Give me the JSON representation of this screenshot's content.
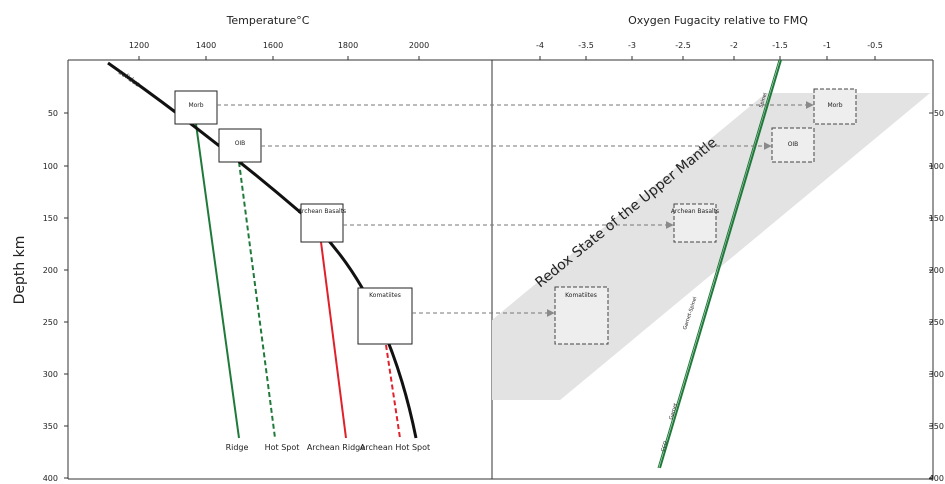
{
  "left_panel": {
    "title": "Temperature°C",
    "y_label": "Depth km",
    "x_ticks": [
      "1200",
      "1400",
      "1600",
      "1800",
      "2000"
    ],
    "y_ticks": [
      "50",
      "100",
      "150",
      "200",
      "250",
      "300",
      "350",
      "400"
    ],
    "solidus_label": "solidus",
    "boxes": [
      {
        "label": "Morb"
      },
      {
        "label": "OIB"
      },
      {
        "label": "Archean Basalts"
      },
      {
        "label": "Komatiites"
      }
    ],
    "path_labels": [
      "Ridge",
      "Hot Spot",
      "Archean Ridge",
      "Archean Hot Spot"
    ]
  },
  "right_panel": {
    "title": "Oxygen Fugacity relative to FMQ",
    "x_ticks": [
      "-4",
      "-3.5",
      "-3",
      "-2.5",
      "-2",
      "-1.5",
      "-1",
      "-0.5"
    ],
    "y_ticks": [
      "50",
      "100",
      "150",
      "200",
      "250",
      "300",
      "350",
      "400"
    ],
    "band_label": "Redox State of the Upper Mantle",
    "boxes": [
      {
        "label": "Morb"
      },
      {
        "label": "OIB"
      },
      {
        "label": "Archean Basalts"
      },
      {
        "label": "Komatiites"
      }
    ],
    "line_labels": [
      "Spinel",
      "Garnet-Spinel",
      "Garnet",
      "CCO"
    ]
  },
  "colors": {
    "axis": "#333333",
    "solidus": "#111111",
    "green_path": "#1f7a3a",
    "red_path": "#e0202a",
    "band": "#e3e3e3",
    "connector": "#777777"
  }
}
